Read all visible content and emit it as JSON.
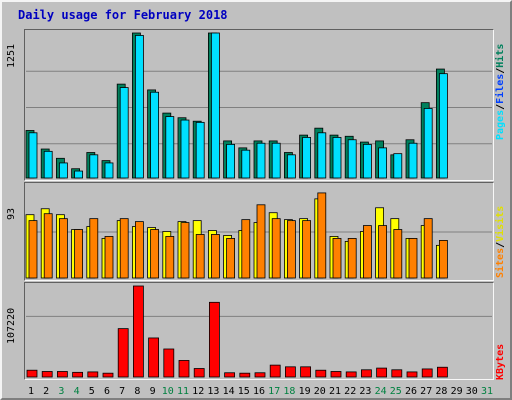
{
  "title": "Daily usage for February 2018",
  "colors": {
    "hits": "#00805c",
    "files": "#0040ff",
    "pages": "#00e0ff",
    "visits": "#ffff00",
    "sites": "#ff8000",
    "kbytes": "#ff0000",
    "weekend_day": "#008040",
    "weekday_day": "#000000"
  },
  "legend": {
    "pages": "Pages",
    "files": "Files",
    "hits": "Hits",
    "sep": "/",
    "sites": "Sites",
    "visits": "Visits",
    "kbytes": "KBytes"
  },
  "chart_data": [
    {
      "type": "bar",
      "panel": "hits-files-pages",
      "ymax_label": "1251",
      "ylim": [
        0,
        1251
      ],
      "categories": [
        "1",
        "2",
        "3",
        "4",
        "5",
        "6",
        "7",
        "8",
        "9",
        "10",
        "11",
        "12",
        "13",
        "14",
        "15",
        "16",
        "17",
        "18",
        "19",
        "20",
        "21",
        "22",
        "23",
        "24",
        "25",
        "26",
        "27",
        "28",
        "29",
        "30",
        "31"
      ],
      "series": [
        {
          "name": "Hits",
          "values": [
            410,
            250,
            170,
            80,
            220,
            150,
            810,
            1251,
            760,
            560,
            520,
            490,
            1251,
            320,
            260,
            320,
            320,
            220,
            370,
            430,
            370,
            360,
            310,
            320,
            200,
            330,
            650,
            940,
            0,
            0,
            0
          ]
        },
        {
          "name": "Pages",
          "values": [
            390,
            230,
            130,
            60,
            200,
            130,
            780,
            1230,
            740,
            530,
            500,
            480,
            1251,
            290,
            240,
            300,
            300,
            200,
            350,
            390,
            350,
            330,
            290,
            260,
            210,
            300,
            600,
            900,
            0,
            0,
            0
          ]
        }
      ]
    },
    {
      "type": "bar",
      "panel": "visits-sites",
      "ymax_label": "93",
      "ylim": [
        0,
        93
      ],
      "categories": [
        "1",
        "2",
        "3",
        "4",
        "5",
        "6",
        "7",
        "8",
        "9",
        "10",
        "11",
        "12",
        "13",
        "14",
        "15",
        "16",
        "17",
        "18",
        "19",
        "20",
        "21",
        "22",
        "23",
        "24",
        "25",
        "26",
        "27",
        "28",
        "29",
        "30",
        "31"
      ],
      "series": [
        {
          "name": "Visits",
          "values": [
            64,
            70,
            64,
            49,
            52,
            40,
            58,
            52,
            51,
            47,
            57,
            58,
            48,
            43,
            48,
            56,
            66,
            59,
            60,
            80,
            42,
            37,
            47,
            71,
            60,
            40,
            53,
            33,
            0,
            0,
            0
          ]
        },
        {
          "name": "Sites",
          "values": [
            58,
            65,
            60,
            49,
            60,
            42,
            60,
            57,
            49,
            42,
            56,
            44,
            44,
            40,
            59,
            74,
            60,
            58,
            58,
            86,
            40,
            40,
            53,
            53,
            49,
            40,
            60,
            38,
            0,
            0,
            0
          ]
        }
      ]
    },
    {
      "type": "bar",
      "panel": "kbytes",
      "ymax_label": "107220",
      "ylim": [
        0,
        107220
      ],
      "categories": [
        "1",
        "2",
        "3",
        "4",
        "5",
        "6",
        "7",
        "8",
        "9",
        "10",
        "11",
        "12",
        "13",
        "14",
        "15",
        "16",
        "17",
        "18",
        "19",
        "20",
        "21",
        "22",
        "23",
        "24",
        "25",
        "26",
        "27",
        "28",
        "29",
        "30",
        "31"
      ],
      "series": [
        {
          "name": "KBytes",
          "values": [
            8000,
            6500,
            6500,
            5500,
            6000,
            4500,
            57000,
            107220,
            46000,
            33000,
            19500,
            10000,
            88000,
            5000,
            4500,
            5000,
            14000,
            12000,
            12000,
            8000,
            6500,
            6000,
            8500,
            10500,
            8500,
            6000,
            9500,
            11500,
            0,
            0,
            0
          ]
        }
      ]
    }
  ],
  "weekend_days": [
    3,
    4,
    10,
    11,
    17,
    18,
    24,
    25,
    31
  ]
}
